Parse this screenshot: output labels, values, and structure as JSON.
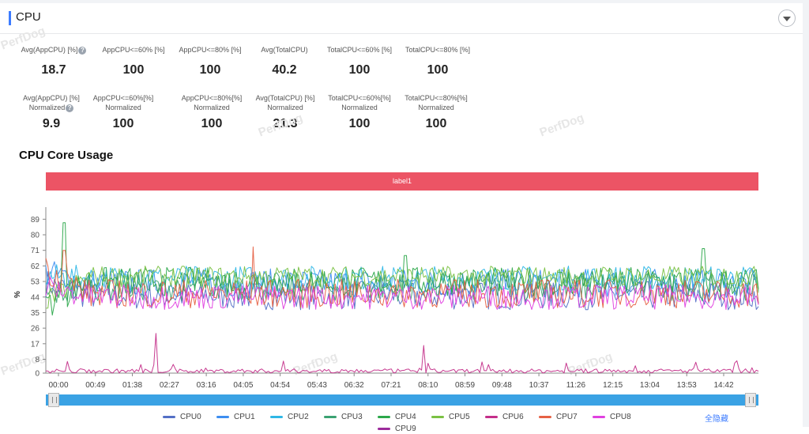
{
  "header": {
    "title": "CPU"
  },
  "metrics_row1": [
    {
      "label": "Avg(AppCPU) [%]",
      "value": "18.7",
      "help": true
    },
    {
      "label": "AppCPU<=60% [%]",
      "value": "100"
    },
    {
      "label": "AppCPU<=80% [%]",
      "value": "100"
    },
    {
      "label": "Avg(TotalCPU)",
      "value": "40.2"
    },
    {
      "label": "TotalCPU<=60% [%]",
      "value": "100"
    },
    {
      "label": "TotalCPU<=80% [%]",
      "value": "100"
    }
  ],
  "metrics_row2": [
    {
      "label": "Avg(AppCPU) [%]",
      "sub": "Normalized",
      "value": "9.9",
      "help": true
    },
    {
      "label": "AppCPU<=60%[%]",
      "sub": "Normalized",
      "value": "100"
    },
    {
      "label": "AppCPU<=80%[%]",
      "sub": "Normalized",
      "value": "100"
    },
    {
      "label": "Avg(TotalCPU) [%]",
      "sub": "Normalized",
      "value": "21.3"
    },
    {
      "label": "TotalCPU<=60%[%]",
      "sub": "Normalized",
      "value": "100"
    },
    {
      "label": "TotalCPU<=80%[%]",
      "sub": "Normalized",
      "value": "100"
    }
  ],
  "watermark": "PerfDog",
  "chart_section_title": "CPU Core Usage",
  "label_bar_text": "label1",
  "hide_all_label": "全隐藏",
  "chart_data": {
    "type": "line",
    "ylabel": "%",
    "yticks": [
      0,
      8,
      17,
      26,
      35,
      44,
      53,
      62,
      71,
      80,
      89
    ],
    "ylim": [
      0,
      96
    ],
    "xticks": [
      "00:00",
      "00:49",
      "01:38",
      "02:27",
      "03:16",
      "04:05",
      "04:54",
      "05:43",
      "06:32",
      "07:21",
      "08:10",
      "08:59",
      "09:48",
      "10:37",
      "11:26",
      "12:15",
      "13:04",
      "13:53",
      "14:42"
    ],
    "x_range_seconds": [
      0,
      932
    ],
    "grid": false,
    "series": [
      {
        "name": "CPU0",
        "color": "#5470c6",
        "mean": 45,
        "amp": 7,
        "start": 52
      },
      {
        "name": "CPU1",
        "color": "#3d8ef0",
        "mean": 52,
        "amp": 7,
        "start": 58
      },
      {
        "name": "CPU2",
        "color": "#2fb7e6",
        "mean": 55,
        "amp": 6,
        "start": 56
      },
      {
        "name": "CPU3",
        "color": "#3ba272",
        "mean": 50,
        "amp": 7,
        "start": 45
      },
      {
        "name": "CPU4",
        "color": "#2ca84b",
        "mean": 53,
        "amp": 7,
        "start": 40
      },
      {
        "name": "CPU5",
        "color": "#7ac143",
        "mean": 56,
        "amp": 5,
        "start": 42
      },
      {
        "name": "CPU6",
        "color": "#c42f8a",
        "mean": 1.5,
        "amp": 1.2,
        "start": 2
      },
      {
        "name": "CPU7",
        "color": "#e66145",
        "mean": 46,
        "amp": 7,
        "start": 60
      },
      {
        "name": "CPU8",
        "color": "#e040e0",
        "mean": 44,
        "amp": 6,
        "start": 50
      },
      {
        "name": "CPU9",
        "color": "#9c2b9b",
        "mean": 0,
        "amp": 0,
        "start": 0
      }
    ],
    "spikes": [
      {
        "series": "CPU4",
        "t": 24,
        "v": 87
      },
      {
        "series": "CPU7",
        "t": 24,
        "v": 71
      },
      {
        "series": "CPU6",
        "t": 145,
        "v": 23
      },
      {
        "series": "CPU6",
        "t": 495,
        "v": 16
      },
      {
        "series": "CPU7",
        "t": 270,
        "v": 73
      },
      {
        "series": "CPU4",
        "t": 470,
        "v": 68
      },
      {
        "series": "CPU4",
        "t": 860,
        "v": 72
      }
    ]
  }
}
